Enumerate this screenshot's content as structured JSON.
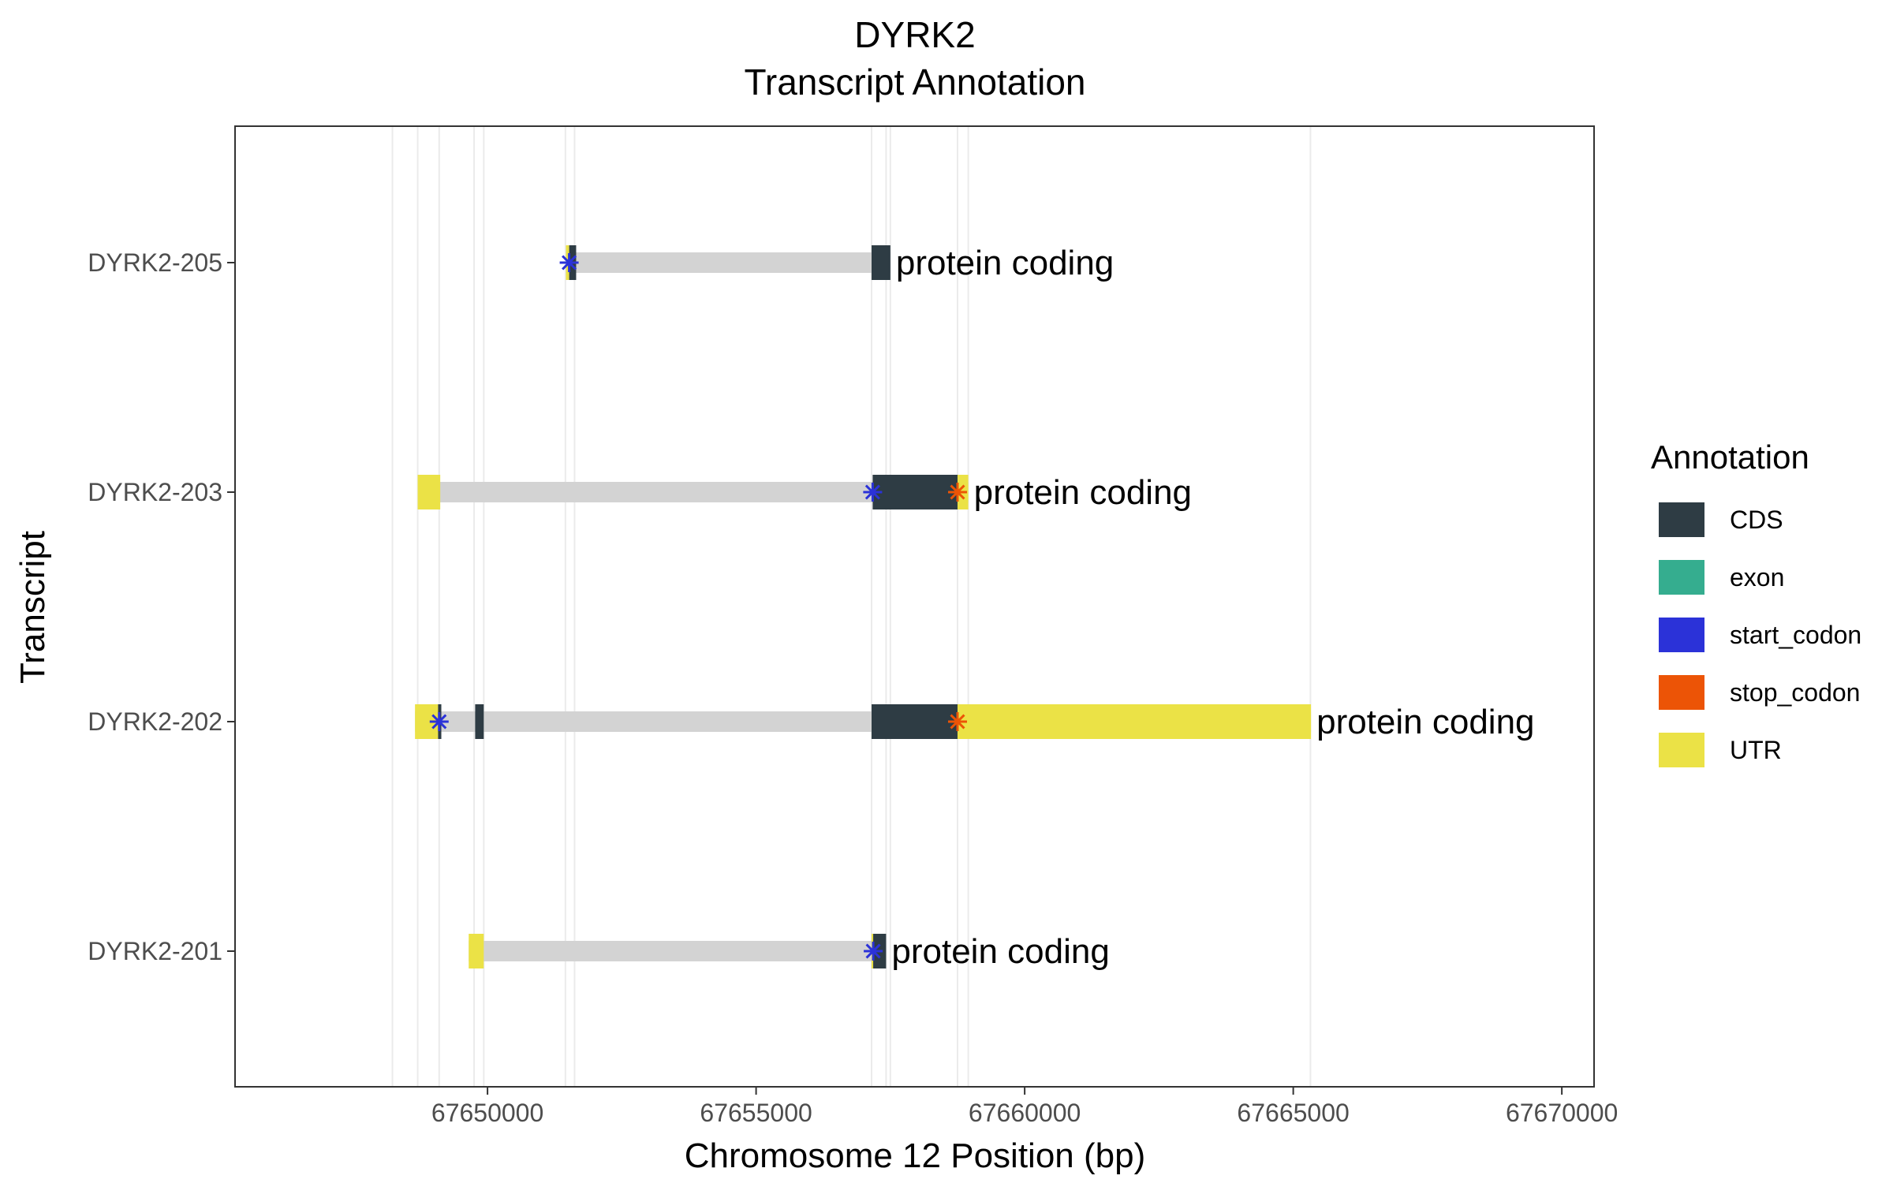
{
  "chart_data": {
    "type": "gantt",
    "title": "DYRK2",
    "subtitle": "Transcript Annotation",
    "xlabel": "Chromosome 12 Position (bp)",
    "ylabel": "Transcript",
    "xlim": [
      67645300,
      67670600
    ],
    "x_ticks": [
      67650000,
      67655000,
      67660000,
      67665000,
      67670000
    ],
    "x_tick_labels": [
      "67650000",
      "67655000",
      "67660000",
      "67665000",
      "67670000"
    ],
    "vertical_gridlines_bp": [
      67648230,
      67648700,
      67649100,
      67649750,
      67649930,
      67651450,
      67651620,
      67657150,
      67657420,
      67657500,
      67658750,
      67658950,
      67665320
    ],
    "legend": {
      "title": "Annotation",
      "position": "right",
      "items": [
        {
          "key": "CDS",
          "label": "CDS",
          "color": "#2e3c44"
        },
        {
          "key": "exon",
          "label": "exon",
          "color": "#35ad8f"
        },
        {
          "key": "start_codon",
          "label": "start_codon",
          "color": "#2b32d8"
        },
        {
          "key": "stop_codon",
          "label": "stop_codon",
          "color": "#ec5406"
        },
        {
          "key": "UTR",
          "label": "UTR",
          "color": "#ebe246"
        }
      ]
    },
    "intron_color": "#d3d3d3",
    "transcripts": [
      {
        "name": "DYRK2-205",
        "biotype": "protein coding",
        "start": 67651460,
        "end": 67657500,
        "features": [
          {
            "type": "UTR",
            "start": 67651460,
            "end": 67651520
          },
          {
            "type": "CDS",
            "start": 67651520,
            "end": 67651650
          },
          {
            "type": "CDS",
            "start": 67657150,
            "end": 67657500
          }
        ],
        "start_codon": 67651520,
        "stop_codon": null
      },
      {
        "name": "DYRK2-203",
        "biotype": "protein coding",
        "start": 67648700,
        "end": 67658950,
        "features": [
          {
            "type": "UTR",
            "start": 67648700,
            "end": 67649120
          },
          {
            "type": "CDS",
            "start": 67657170,
            "end": 67658750
          },
          {
            "type": "UTR",
            "start": 67658750,
            "end": 67658950
          }
        ],
        "start_codon": 67657170,
        "stop_codon": 67658750
      },
      {
        "name": "DYRK2-202",
        "biotype": "protein coding",
        "start": 67648650,
        "end": 67665330,
        "features": [
          {
            "type": "UTR",
            "start": 67648650,
            "end": 67649080
          },
          {
            "type": "CDS",
            "start": 67649080,
            "end": 67649140
          },
          {
            "type": "CDS",
            "start": 67649770,
            "end": 67649930
          },
          {
            "type": "CDS",
            "start": 67657150,
            "end": 67658750
          },
          {
            "type": "UTR",
            "start": 67658750,
            "end": 67665330
          }
        ],
        "start_codon": 67649100,
        "stop_codon": 67658750
      },
      {
        "name": "DYRK2-201",
        "biotype": "protein coding",
        "start": 67649650,
        "end": 67657420,
        "features": [
          {
            "type": "UTR",
            "start": 67649650,
            "end": 67649930
          },
          {
            "type": "UTR",
            "start": 67657150,
            "end": 67657180
          },
          {
            "type": "CDS",
            "start": 67657180,
            "end": 67657420
          }
        ],
        "start_codon": 67657180,
        "stop_codon": null
      }
    ]
  }
}
